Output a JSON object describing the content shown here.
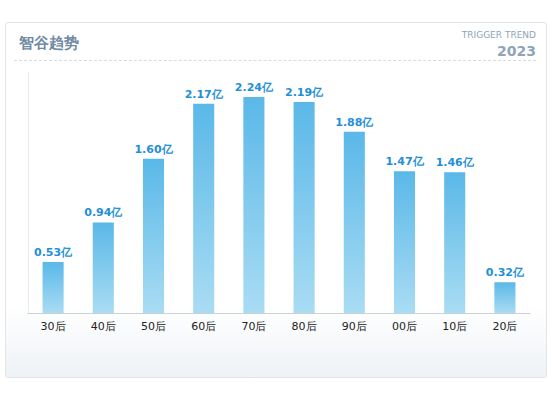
{
  "chart_data": {
    "type": "bar",
    "title": "智谷趋势",
    "annotations": [
      "TRIGGER TREND",
      "2023"
    ],
    "categories": [
      "30后",
      "40后",
      "50后",
      "60后",
      "70后",
      "80后",
      "90后",
      "00后",
      "10后",
      "20后"
    ],
    "values": [
      0.53,
      0.94,
      1.6,
      2.17,
      2.24,
      2.19,
      1.88,
      1.47,
      1.46,
      0.32
    ],
    "value_labels": [
      "0.53亿",
      "0.94亿",
      "1.60亿",
      "2.17亿",
      "2.24亿",
      "2.19亿",
      "1.88亿",
      "1.47亿",
      "1.46亿",
      "0.32亿"
    ],
    "color": "#5ab8e8",
    "ylim": [
      0,
      2.5
    ],
    "grid": false,
    "data_labels": true,
    "tick_labels": "x"
  }
}
